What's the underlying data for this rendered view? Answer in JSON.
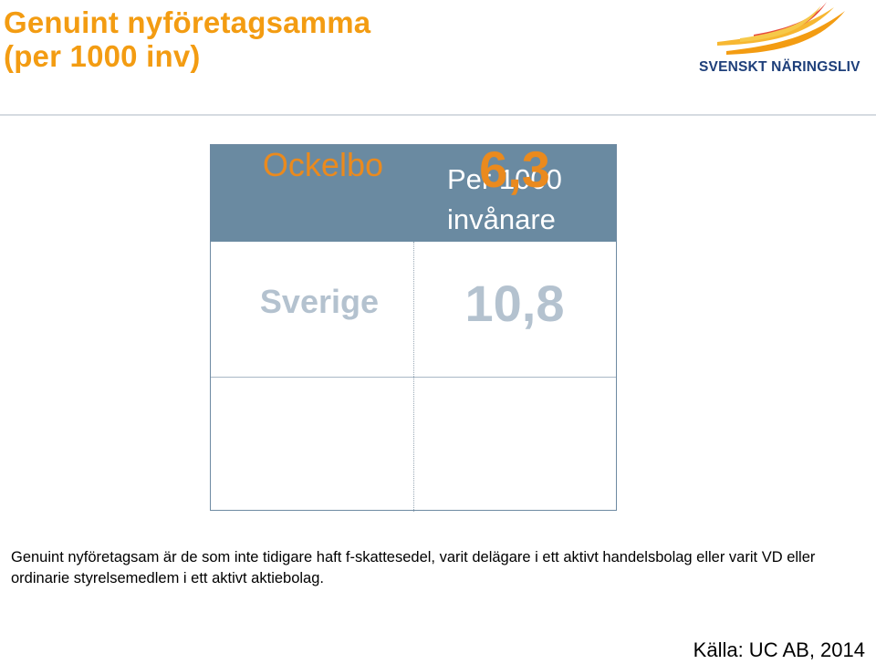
{
  "header": {
    "title_line1": "Genuint nyföretagsamma",
    "title_line2": "(per 1000 inv)",
    "logo_text": "SVENSKT NÄRINGSLIV"
  },
  "table": {
    "column_header": "Per 1000 invånare",
    "rows": [
      {
        "label": "Ockelbo",
        "value": "6,3"
      },
      {
        "label": "Sverige",
        "value": "10,8"
      }
    ]
  },
  "description": "Genuint nyföretagsam är de som inte tidigare haft f-skattesedel, varit delägare i ett aktivt handelsbolag eller varit VD eller ordinarie styrelsemedlem i ett aktivt aktiebolag.",
  "source": "Källa: UC AB, 2014",
  "colors": {
    "title": "#f39c12",
    "header_bg": "#6a8aa1",
    "ockelbo": "#ea8a1e",
    "sverige": "#b4c2cf",
    "logo_text": "#1e3f7a"
  }
}
